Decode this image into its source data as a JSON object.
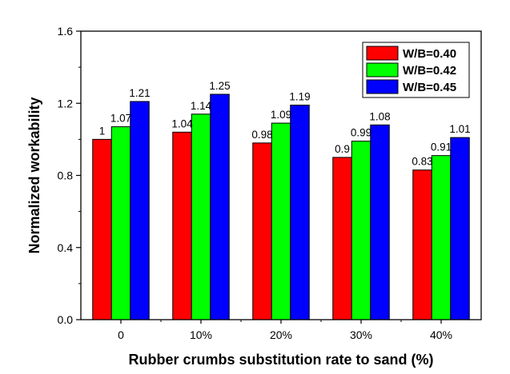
{
  "chart_data": {
    "type": "bar",
    "title": "",
    "xlabel": "Rubber crumbs substitution rate to sand (%)",
    "ylabel": "Normalized workability",
    "categories": [
      "0",
      "10%",
      "20%",
      "30%",
      "40%"
    ],
    "ylim": [
      0,
      1.6
    ],
    "yticks": [
      "0.0",
      "0.4",
      "0.8",
      "1.2",
      "1.6"
    ],
    "grid": false,
    "legend_position": "top-right",
    "series": [
      {
        "name": "W/B=0.40",
        "color": "#ff0000",
        "values": [
          1.0,
          1.04,
          0.98,
          0.9,
          0.83
        ],
        "labels": [
          "1",
          "1.04",
          "0.98",
          "0.9",
          "0.83"
        ]
      },
      {
        "name": "W/B=0.42",
        "color": "#00ff00",
        "values": [
          1.07,
          1.14,
          1.09,
          0.99,
          0.91
        ],
        "labels": [
          "1.07",
          "1.14",
          "1.09",
          "0.99",
          "0.91"
        ]
      },
      {
        "name": "W/B=0.45",
        "color": "#0000ff",
        "values": [
          1.21,
          1.25,
          1.19,
          1.08,
          1.01
        ],
        "labels": [
          "1.21",
          "1.25",
          "1.19",
          "1.08",
          "1.01"
        ]
      }
    ]
  }
}
